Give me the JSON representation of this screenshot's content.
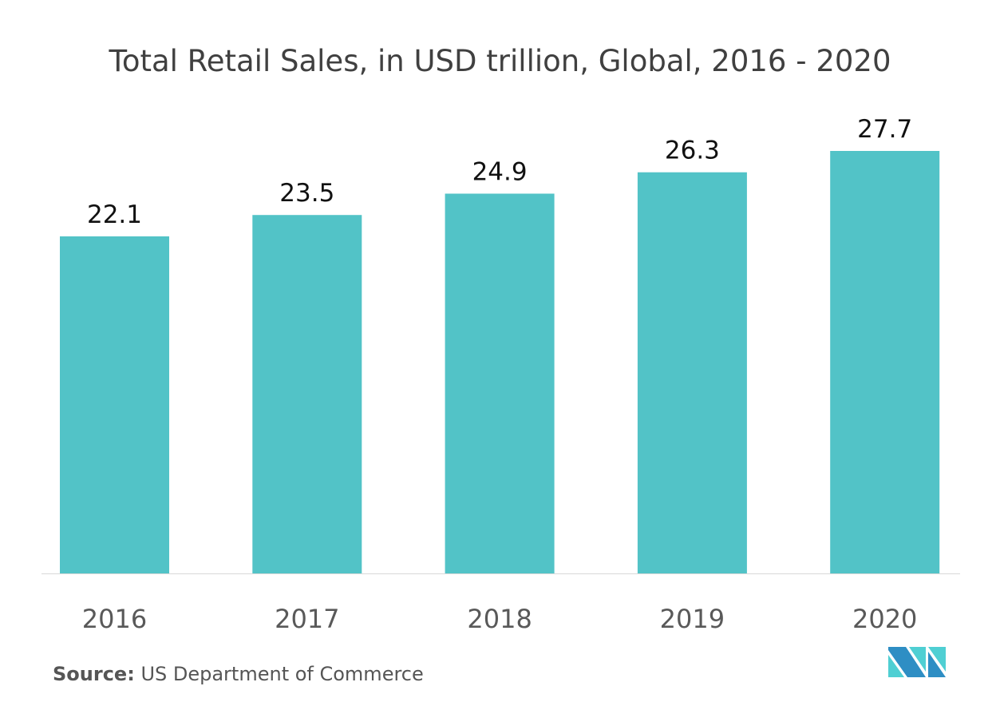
{
  "chart_data": {
    "type": "bar",
    "title": "Total Retail Sales, in USD trillion, Global, 2016 - 2020",
    "categories": [
      "2016",
      "2017",
      "2018",
      "2019",
      "2020"
    ],
    "values": [
      22.1,
      23.5,
      24.9,
      26.3,
      27.7
    ],
    "xlabel": "",
    "ylabel": "",
    "ylim": [
      0,
      27.7
    ],
    "grid": false,
    "bar_color": "#52c3c7"
  },
  "source": {
    "label": "Source:",
    "text": "US Department of Commerce"
  },
  "logo_colors": [
    "#2e8ec4",
    "#4fcfd3"
  ]
}
